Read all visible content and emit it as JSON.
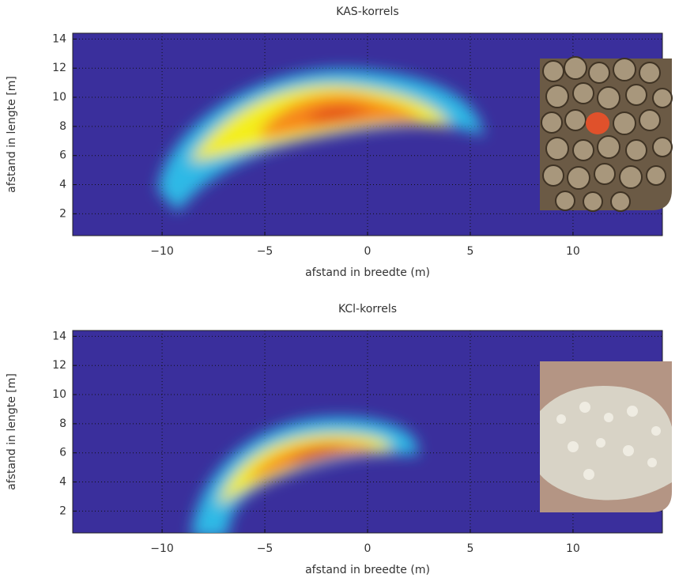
{
  "chart_data": [
    {
      "type": "heatmap",
      "title": "KAS-korrels",
      "x_label": "afstand in breedte (m)",
      "y_label": "afstand in lengte [m]",
      "xlim": [
        -14.35,
        14.35
      ],
      "ylim": [
        0.5,
        14.4
      ],
      "xticks": [
        {
          "value": -10,
          "label": "−10"
        },
        {
          "value": -5,
          "label": "−5"
        },
        0,
        5,
        10
      ],
      "yticks": [
        2,
        4,
        6,
        8,
        10,
        12,
        14
      ],
      "grid": true,
      "background": "#3a2f9c"
    },
    {
      "type": "heatmap",
      "title": "KCl-korrels",
      "x_label": "afstand in breedte (m)",
      "y_label": "afstand in lengte [m]",
      "xlim": [
        -14.35,
        14.35
      ],
      "ylim": [
        0.5,
        14.4
      ],
      "xticks": [
        {
          "value": -10,
          "label": "−10"
        },
        {
          "value": -5,
          "label": "−5"
        },
        0,
        5,
        10
      ],
      "yticks": [
        2,
        4,
        6,
        8,
        10,
        12,
        14
      ],
      "grid": true,
      "background": "#3a2f9c"
    }
  ]
}
